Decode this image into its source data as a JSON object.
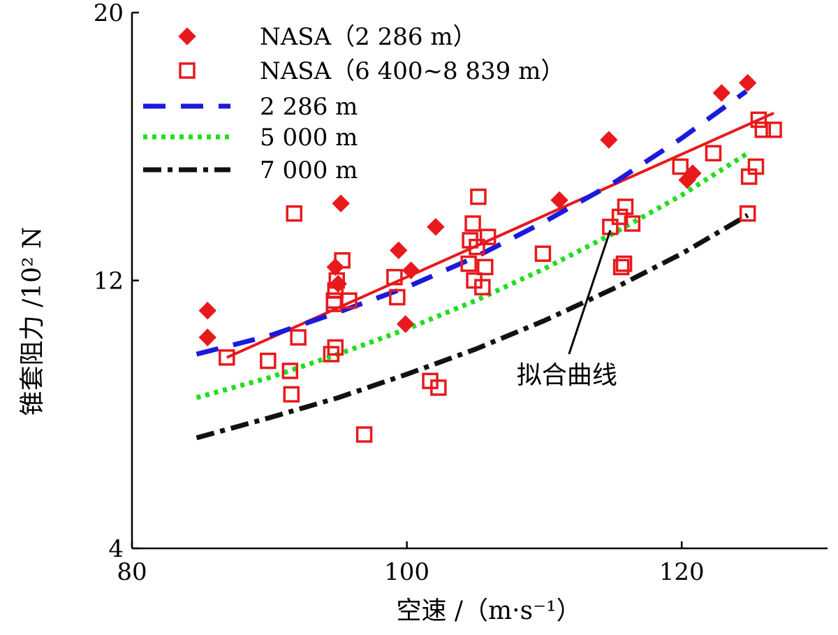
{
  "chart_data": {
    "type": "scatter",
    "title": "",
    "xlabel": "空速 /（m·s⁻¹）",
    "ylabel": "锥套阻力 /10² N",
    "xlim": [
      80,
      130
    ],
    "ylim": [
      4,
      20
    ],
    "x_ticks": [
      80,
      100,
      120
    ],
    "y_ticks": [
      4,
      12,
      20
    ],
    "x_tick_labels": [
      "80",
      "100",
      "120"
    ],
    "y_tick_labels": [
      "4",
      "12",
      "20"
    ],
    "grid": false,
    "legend_position": "top-left",
    "series": [
      {
        "name": "NASA（2 286 m）",
        "kind": "markers",
        "marker": "filled-diamond",
        "color": "#e8191c",
        "points": [
          [
            85.5,
            11.1
          ],
          [
            85.5,
            10.3
          ],
          [
            95.2,
            14.3
          ],
          [
            94.8,
            12.4
          ],
          [
            99.4,
            12.9
          ],
          [
            100.3,
            12.3
          ],
          [
            102.1,
            13.6
          ],
          [
            99.9,
            10.7
          ],
          [
            111.1,
            14.4
          ],
          [
            114.7,
            16.2
          ],
          [
            120.4,
            15.0
          ],
          [
            120.8,
            15.2
          ],
          [
            122.9,
            17.6
          ],
          [
            124.8,
            17.9
          ],
          [
            95.0,
            11.9
          ]
        ]
      },
      {
        "name": "NASA（6 400~8 839 m）",
        "kind": "markers",
        "marker": "open-square",
        "color": "#e8191c",
        "points": [
          [
            86.9,
            9.7
          ],
          [
            89.9,
            9.6
          ],
          [
            91.5,
            9.3
          ],
          [
            91.6,
            8.6
          ],
          [
            92.1,
            10.3
          ],
          [
            91.8,
            14.0
          ],
          [
            94.5,
            9.8
          ],
          [
            94.8,
            10.0
          ],
          [
            94.7,
            11.3
          ],
          [
            94.7,
            11.4
          ],
          [
            94.8,
            11.7
          ],
          [
            94.9,
            12.0
          ],
          [
            95.3,
            12.6
          ],
          [
            95.8,
            11.4
          ],
          [
            96.9,
            7.4
          ],
          [
            99.1,
            12.1
          ],
          [
            99.3,
            11.5
          ],
          [
            101.7,
            9.0
          ],
          [
            102.3,
            8.8
          ],
          [
            104.8,
            13.7
          ],
          [
            104.6,
            13.2
          ],
          [
            104.5,
            12.5
          ],
          [
            104.9,
            12.0
          ],
          [
            105.1,
            13.0
          ],
          [
            105.2,
            14.5
          ],
          [
            105.5,
            11.8
          ],
          [
            105.7,
            12.4
          ],
          [
            105.9,
            13.3
          ],
          [
            109.9,
            12.8
          ],
          [
            114.8,
            13.6
          ],
          [
            115.5,
            13.9
          ],
          [
            115.6,
            12.4
          ],
          [
            115.8,
            12.5
          ],
          [
            115.9,
            14.2
          ],
          [
            116.4,
            13.7
          ],
          [
            119.9,
            15.4
          ],
          [
            122.3,
            15.8
          ],
          [
            124.8,
            14.0
          ],
          [
            124.9,
            15.1
          ],
          [
            125.4,
            15.4
          ],
          [
            125.6,
            16.8
          ],
          [
            125.9,
            16.5
          ],
          [
            126.7,
            16.5
          ]
        ]
      },
      {
        "name": "拟合曲线",
        "kind": "line",
        "style": "solid",
        "color": "#e8191c",
        "points": [
          [
            86.9,
            9.7
          ],
          [
            126.7,
            17.0
          ]
        ]
      },
      {
        "name": "2 286 m",
        "kind": "line",
        "style": "dashed",
        "color": "#1a1adc",
        "points": [
          [
            84.7,
            9.8
          ],
          [
            90,
            10.35
          ],
          [
            95,
            11.05
          ],
          [
            100,
            11.8
          ],
          [
            105,
            12.7
          ],
          [
            110,
            13.75
          ],
          [
            115,
            14.9
          ],
          [
            120,
            16.25
          ],
          [
            124.7,
            17.65
          ]
        ]
      },
      {
        "name": "5 000 m",
        "kind": "line",
        "style": "dotted",
        "color": "#22dd22",
        "points": [
          [
            84.7,
            8.5
          ],
          [
            90,
            9.1
          ],
          [
            95,
            9.8
          ],
          [
            100,
            10.55
          ],
          [
            105,
            11.4
          ],
          [
            110,
            12.35
          ],
          [
            115,
            13.4
          ],
          [
            120,
            14.55
          ],
          [
            124.8,
            15.8
          ]
        ]
      },
      {
        "name": "7 000 m",
        "kind": "line",
        "style": "dash-dot",
        "color": "#111111",
        "points": [
          [
            84.7,
            7.3
          ],
          [
            90,
            7.9
          ],
          [
            95,
            8.5
          ],
          [
            100,
            9.2
          ],
          [
            105,
            9.95
          ],
          [
            110,
            10.8
          ],
          [
            115,
            11.75
          ],
          [
            120,
            12.8
          ],
          [
            124.8,
            13.95
          ]
        ]
      }
    ],
    "annotations": [
      {
        "text": "拟合曲线",
        "arrow_from": [
          111.8,
          9.8
        ],
        "arrow_to": [
          114.8,
          13.5
        ]
      }
    ]
  }
}
